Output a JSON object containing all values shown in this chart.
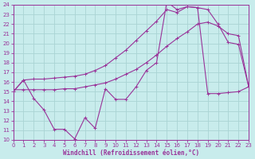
{
  "xlabel": "Windchill (Refroidissement éolien,°C)",
  "ylabel": "",
  "background_color": "#c8ecec",
  "grid_color": "#aad4d4",
  "line_color": "#993399",
  "xlim": [
    0,
    23
  ],
  "ylim": [
    10,
    24
  ],
  "xticks": [
    0,
    1,
    2,
    3,
    4,
    5,
    6,
    7,
    8,
    9,
    10,
    11,
    12,
    13,
    14,
    15,
    16,
    17,
    18,
    19,
    20,
    21,
    22,
    23
  ],
  "yticks": [
    10,
    11,
    12,
    13,
    14,
    15,
    16,
    17,
    18,
    19,
    20,
    21,
    22,
    23,
    24
  ],
  "line1_x": [
    0,
    1,
    2,
    3,
    4,
    5,
    6,
    7,
    8,
    9,
    10,
    11,
    12,
    13,
    14,
    15,
    16,
    17,
    18,
    19,
    20,
    21,
    22,
    23
  ],
  "line1_y": [
    15.0,
    16.2,
    16.3,
    16.3,
    16.4,
    16.5,
    16.6,
    16.8,
    17.2,
    17.7,
    18.5,
    19.3,
    20.3,
    21.3,
    22.3,
    23.5,
    23.2,
    23.8,
    23.7,
    23.5,
    22.0,
    20.1,
    19.9,
    15.5
  ],
  "line2_x": [
    0,
    1,
    2,
    3,
    4,
    5,
    6,
    7,
    8,
    9,
    10,
    11,
    12,
    13,
    14,
    15,
    16,
    17,
    18,
    19,
    20,
    21,
    22,
    23
  ],
  "line2_y": [
    15.2,
    15.2,
    15.2,
    15.2,
    15.2,
    15.3,
    15.3,
    15.5,
    15.7,
    15.9,
    16.3,
    16.8,
    17.3,
    18.0,
    18.8,
    19.7,
    20.5,
    21.2,
    22.0,
    22.2,
    21.8,
    21.0,
    20.8,
    15.5
  ],
  "line3_x": [
    0,
    1,
    2,
    3,
    4,
    5,
    6,
    7,
    8,
    9,
    10,
    11,
    12,
    13,
    14,
    15,
    16,
    17,
    18,
    19,
    20,
    21,
    22,
    23
  ],
  "line3_y": [
    15.0,
    16.2,
    14.3,
    13.1,
    11.1,
    11.1,
    10.1,
    12.3,
    11.2,
    15.3,
    14.2,
    14.2,
    15.5,
    17.2,
    18.0,
    24.3,
    23.5,
    23.8,
    23.7,
    14.8,
    14.8,
    14.9,
    15.0,
    15.5
  ]
}
